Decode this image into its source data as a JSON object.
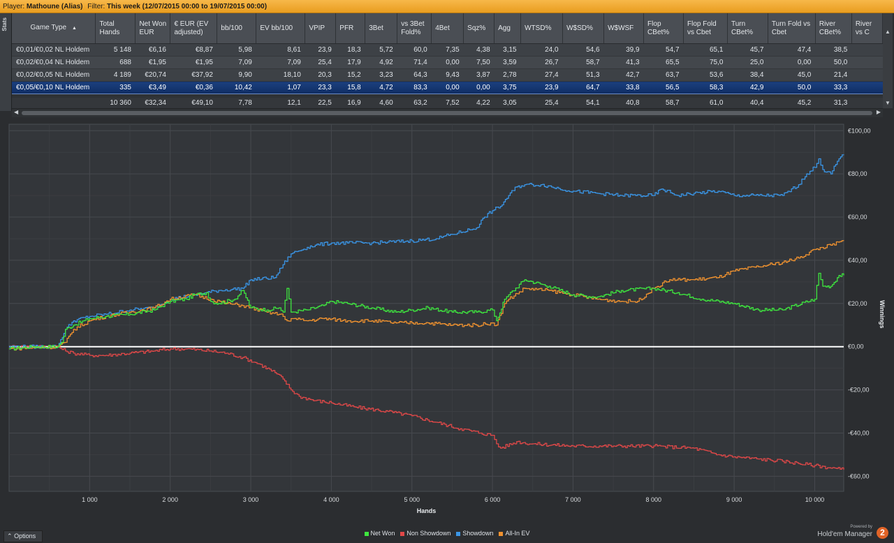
{
  "filter_bar": {
    "player_label": "Player:",
    "player_value": "Mathoune (Alias)",
    "filter_label": "Filter:",
    "filter_value": "This week (12/07/2015 00:00 to 19/07/2015 00:00)"
  },
  "stats_tab": "Stats",
  "table": {
    "columns": [
      "Game Type",
      "Total Hands",
      "Net Won EUR",
      "€ EUR (EV adjusted)",
      "bb/100",
      "EV bb/100",
      "VPIP",
      "PFR",
      "3Bet",
      "vs 3Bet Fold%",
      "4Bet",
      "Sqz%",
      "Agg",
      "WTSD%",
      "W$SD%",
      "W$WSF",
      "Flop CBet%",
      "Flop Fold vs Cbet",
      "Turn CBet%",
      "Turn Fold vs Cbet",
      "River CBet%",
      "River vs C"
    ],
    "rows": [
      [
        "€0,01/€0,02 NL Holdem",
        "5 148",
        "€6,16",
        "€8,87",
        "5,98",
        "8,61",
        "23,9",
        "18,3",
        "5,72",
        "60,0",
        "7,35",
        "4,38",
        "3,15",
        "24,0",
        "54,6",
        "39,9",
        "54,7",
        "65,1",
        "45,7",
        "47,4",
        "38,5",
        ""
      ],
      [
        "€0,02/€0,04 NL Holdem",
        "688",
        "€1,95",
        "€1,95",
        "7,09",
        "7,09",
        "25,4",
        "17,9",
        "4,92",
        "71,4",
        "0,00",
        "7,50",
        "3,59",
        "26,7",
        "58,7",
        "41,3",
        "65,5",
        "75,0",
        "25,0",
        "0,00",
        "50,0",
        ""
      ],
      [
        "€0,02/€0,05 NL Holdem",
        "4 189",
        "€20,74",
        "€37,92",
        "9,90",
        "18,10",
        "20,3",
        "15,2",
        "3,23",
        "64,3",
        "9,43",
        "3,87",
        "2,78",
        "27,4",
        "51,3",
        "42,7",
        "63,7",
        "53,6",
        "38,4",
        "45,0",
        "21,4",
        ""
      ],
      [
        "€0,05/€0,10 NL Holdem",
        "335",
        "€3,49",
        "€0,36",
        "10,42",
        "1,07",
        "23,3",
        "15,8",
        "4,72",
        "83,3",
        "0,00",
        "0,00",
        "3,75",
        "23,9",
        "64,7",
        "33,8",
        "56,5",
        "58,3",
        "42,9",
        "50,0",
        "33,3",
        ""
      ]
    ],
    "totals": [
      "",
      "10 360",
      "€32,34",
      "€49,10",
      "7,78",
      "12,1",
      "22,5",
      "16,9",
      "4,60",
      "63,2",
      "7,52",
      "4,22",
      "3,05",
      "25,4",
      "54,1",
      "40,8",
      "58,7",
      "61,0",
      "40,4",
      "45,2",
      "31,3",
      ""
    ],
    "selected_row": 3
  },
  "chart_data": {
    "type": "line",
    "xlabel": "Hands",
    "ylabel": "Winnings",
    "xlim": [
      0,
      10360
    ],
    "ylim": [
      -67,
      103
    ],
    "x_ticks": [
      1000,
      2000,
      3000,
      4000,
      5000,
      6000,
      7000,
      8000,
      9000,
      10000
    ],
    "x_tick_labels": [
      "1 000",
      "2 000",
      "3 000",
      "4 000",
      "5 000",
      "6 000",
      "7 000",
      "8 000",
      "9 000",
      "10 000"
    ],
    "y_ticks": [
      100,
      80,
      60,
      40,
      20,
      0,
      -20,
      -40,
      -60
    ],
    "y_tick_labels": [
      "€100,00",
      "€80,00",
      "€60,00",
      "€40,00",
      "€20,00",
      "€0,00",
      "-€20,00",
      "-€40,00",
      "-€60,00"
    ],
    "grid": true,
    "legend_position": "bottom",
    "series": [
      {
        "name": "Net Won",
        "color": "#3ee63e",
        "x": [
          0,
          300,
          600,
          650,
          700,
          800,
          1000,
          1200,
          1500,
          1800,
          2000,
          2200,
          2300,
          2450,
          2500,
          2600,
          2800,
          2900,
          3000,
          3200,
          3350,
          3400,
          3450,
          3500,
          3700,
          3900,
          4000,
          4200,
          4500,
          4800,
          5000,
          5200,
          5500,
          5800,
          6000,
          6050,
          6150,
          6200,
          6400,
          6700,
          7000,
          7300,
          7600,
          8000,
          8300,
          8600,
          9000,
          9300,
          9600,
          10000,
          10050,
          10100,
          10200,
          10300,
          10360
        ],
        "y": [
          -1,
          0,
          0,
          2,
          8,
          10,
          13,
          14,
          15,
          17,
          21,
          22,
          24,
          25,
          21,
          20,
          22,
          26,
          18,
          17,
          18,
          16,
          27,
          16,
          17,
          19,
          21,
          20,
          18,
          16,
          17,
          18,
          16,
          16,
          17,
          12,
          22,
          24,
          31,
          28,
          24,
          23,
          26,
          27,
          25,
          22,
          20,
          17,
          17,
          22,
          34,
          28,
          28,
          33,
          33
        ]
      },
      {
        "name": "Non Showdown",
        "color": "#e04848",
        "x": [
          0,
          600,
          700,
          800,
          1000,
          1200,
          1500,
          1800,
          2000,
          2200,
          2500,
          2700,
          2900,
          3100,
          3300,
          3400,
          3500,
          3600,
          3800,
          4000,
          4300,
          4700,
          5000,
          5300,
          5600,
          5850,
          6000,
          6050,
          6100,
          6300,
          6500,
          7000,
          7500,
          8000,
          8500,
          8800,
          9000,
          9300,
          9600,
          10000,
          10360
        ],
        "y": [
          0,
          0,
          -2,
          -3,
          -4,
          -4,
          -3,
          -2,
          -1,
          -1,
          -2,
          -3,
          -5,
          -8,
          -12,
          -15,
          -20,
          -23,
          -25,
          -26,
          -28,
          -30,
          -32,
          -35,
          -38,
          -40,
          -41,
          -45,
          -47,
          -44,
          -45,
          -46,
          -46,
          -46,
          -47,
          -50,
          -51,
          -52,
          -53,
          -55,
          -57
        ]
      },
      {
        "name": "Showdown",
        "color": "#3a95e6",
        "x": [
          0,
          600,
          700,
          800,
          1000,
          1200,
          1500,
          1800,
          2000,
          2300,
          2600,
          2900,
          3000,
          3300,
          3400,
          3500,
          3700,
          3800,
          4000,
          4200,
          4500,
          5000,
          5300,
          5500,
          5800,
          5900,
          6000,
          6100,
          6200,
          6300,
          6400,
          6600,
          7000,
          7300,
          7600,
          8000,
          8100,
          8300,
          8500,
          8800,
          9000,
          9300,
          9600,
          9800,
          9900,
          10000,
          10050,
          10100,
          10200,
          10300,
          10360
        ],
        "y": [
          0,
          0,
          8,
          12,
          14,
          15,
          17,
          18,
          22,
          24,
          26,
          27,
          31,
          32,
          38,
          43,
          46,
          47,
          48,
          48,
          48,
          49,
          50,
          52,
          55,
          60,
          63,
          65,
          70,
          74,
          75,
          75,
          72,
          71,
          70,
          70,
          73,
          70,
          71,
          72,
          70,
          70,
          70,
          75,
          80,
          83,
          87,
          82,
          80,
          87,
          89
        ]
      },
      {
        "name": "All-In EV",
        "color": "#f0922f",
        "x": [
          0,
          600,
          700,
          800,
          1000,
          1200,
          1500,
          1800,
          2000,
          2300,
          2500,
          2700,
          2900,
          3000,
          3200,
          3350,
          3400,
          3450,
          3500,
          3700,
          3900,
          4200,
          4500,
          4800,
          5000,
          5200,
          5500,
          5800,
          6000,
          6050,
          6150,
          6200,
          6400,
          6700,
          7000,
          7300,
          7600,
          7800,
          8000,
          8200,
          8500,
          8800,
          9000,
          9300,
          9600,
          9800,
          10000,
          10200,
          10360
        ],
        "y": [
          -1,
          0,
          2,
          8,
          12,
          14,
          16,
          18,
          22,
          24,
          22,
          20,
          19,
          18,
          16,
          15,
          14,
          12,
          13,
          12,
          13,
          12,
          12,
          11,
          11,
          11,
          10,
          10,
          11,
          10,
          20,
          22,
          27,
          26,
          24,
          22,
          21,
          21,
          27,
          31,
          31,
          32,
          35,
          37,
          39,
          41,
          45,
          47,
          49
        ]
      }
    ]
  },
  "legend": {
    "items": [
      {
        "label": "Net Won",
        "color": "#3ee63e"
      },
      {
        "label": "Non Showdown",
        "color": "#e04848"
      },
      {
        "label": "Showdown",
        "color": "#3a95e6"
      },
      {
        "label": "All-In EV",
        "color": "#f0922f"
      }
    ]
  },
  "options_button": "Options",
  "branding": {
    "powered_by": "Powered by",
    "name": "Hold'em Manager",
    "logo_text": "2"
  }
}
